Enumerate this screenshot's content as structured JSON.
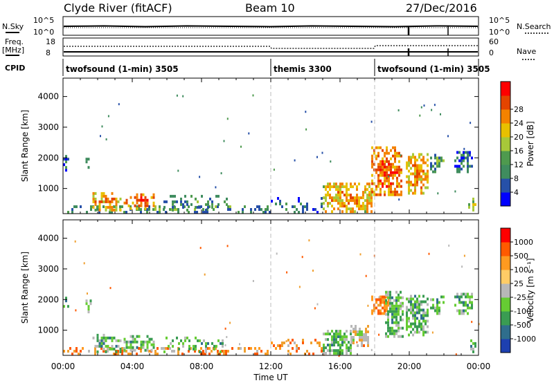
{
  "header": {
    "title": "Clyde River (fitACF)",
    "beam": "Beam 10",
    "date": "27/Dec/2016"
  },
  "top_strip": {
    "nsky_label": "N.Sky",
    "nsearch_label": "N.Search",
    "left_ticks": [
      "10^5",
      "10^0"
    ],
    "right_ticks": [
      "10^5",
      "10^0"
    ]
  },
  "freq_strip": {
    "freq_label": "Freq.",
    "freq_unit": "[MHz]",
    "nave_label": "Nave",
    "left_ticks": [
      "18",
      "8"
    ],
    "right_ticks": [
      "60",
      "0"
    ]
  },
  "cpid": {
    "label": "CPID",
    "segments": [
      {
        "start": 0,
        "end": 12,
        "name": "twofsound (1-min) 3505"
      },
      {
        "start": 12,
        "end": 18,
        "name": "themis 3300"
      },
      {
        "start": 18,
        "end": 24,
        "name": "twofsound (1-min) 3505"
      }
    ]
  },
  "colors": {
    "power": [
      "#0000ff",
      "#2650a8",
      "#3f8c5e",
      "#4e9a4e",
      "#a7c839",
      "#e8c000",
      "#f48200",
      "#e44400",
      "#ff0000"
    ],
    "velocity_bar": [
      "#ff0000",
      "#ff5a00",
      "#ff9a20",
      "#ffcc66",
      "#b8b8b8",
      "#66cc33",
      "#3a9c52",
      "#2f6e8c",
      "#1d40b0"
    ],
    "guide": "#bdbdbd"
  },
  "chart_data": [
    {
      "type": "heatmap",
      "panel": "power",
      "ylabel": "Slant Range [km]",
      "xlim": [
        0,
        24
      ],
      "ylim": [
        180,
        4600
      ],
      "y_ticks": [
        1000,
        2000,
        3000,
        4000
      ],
      "colorbar": {
        "label": "Power [dB]",
        "ticks": [
          "4",
          "8",
          "12",
          "16",
          "20",
          "24",
          "28"
        ],
        "range": [
          0,
          30
        ]
      },
      "blobs": [
        {
          "t0": 0.0,
          "t1": 11.9,
          "r0": 180,
          "r1": 420,
          "level": 3,
          "density": 0.45
        },
        {
          "t0": 0.0,
          "t1": 0.25,
          "r0": 1550,
          "r1": 2100,
          "level": 2,
          "density": 0.6
        },
        {
          "t0": 1.3,
          "t1": 1.6,
          "r0": 1550,
          "r1": 2000,
          "level": 3,
          "density": 0.6
        },
        {
          "t0": 1.7,
          "t1": 3.3,
          "r0": 250,
          "r1": 820,
          "level": 6,
          "density": 0.55
        },
        {
          "t0": 3.5,
          "t1": 5.2,
          "r0": 300,
          "r1": 800,
          "level": 7,
          "density": 0.65
        },
        {
          "t0": 5.8,
          "t1": 9.5,
          "r0": 250,
          "r1": 750,
          "level": 3,
          "density": 0.3
        },
        {
          "t0": 12.0,
          "t1": 15.0,
          "r0": 180,
          "r1": 650,
          "level": 2,
          "density": 0.3
        },
        {
          "t0": 15.0,
          "t1": 17.8,
          "r0": 200,
          "r1": 1150,
          "level": 6,
          "density": 0.7
        },
        {
          "t0": 17.8,
          "t1": 19.6,
          "r0": 750,
          "r1": 2350,
          "level": 7,
          "density": 0.8
        },
        {
          "t0": 19.8,
          "t1": 21.1,
          "r0": 800,
          "r1": 2150,
          "level": 6,
          "density": 0.75
        },
        {
          "t0": 21.2,
          "t1": 22.0,
          "r0": 1500,
          "r1": 2100,
          "level": 3,
          "density": 0.6
        },
        {
          "t0": 22.6,
          "t1": 23.6,
          "r0": 1500,
          "r1": 2200,
          "level": 2,
          "density": 0.7
        },
        {
          "t0": 23.4,
          "t1": 24.0,
          "r0": 250,
          "r1": 650,
          "level": 4,
          "density": 0.6
        }
      ]
    },
    {
      "type": "heatmap",
      "panel": "velocity",
      "ylabel": "Slant Range [km]",
      "xlabel": "Time UT",
      "xlim": [
        0,
        24
      ],
      "ylim": [
        180,
        4600
      ],
      "x_ticks": [
        "00:00",
        "04:00",
        "08:00",
        "12:00",
        "16:00",
        "20:00",
        "00:00"
      ],
      "y_ticks": [
        1000,
        2000,
        3000,
        4000
      ],
      "colorbar": {
        "label": "Velocity [m s⁻¹]",
        "ticks": [
          "1000",
          "500",
          "100",
          "25",
          "-25",
          "-100",
          "-500",
          "-1000"
        ]
      },
      "blobs": [
        {
          "t0": 0.0,
          "t1": 11.9,
          "r0": 180,
          "r1": 420,
          "level": 2,
          "density": 0.45
        },
        {
          "t0": 0.0,
          "t1": 0.25,
          "r0": 1550,
          "r1": 2100,
          "level": 6,
          "density": 0.6
        },
        {
          "t0": 1.3,
          "t1": 1.6,
          "r0": 1550,
          "r1": 2000,
          "level": 6,
          "density": 0.6
        },
        {
          "t0": 1.7,
          "t1": 3.3,
          "r0": 250,
          "r1": 820,
          "level": 6,
          "density": 0.55
        },
        {
          "t0": 3.5,
          "t1": 5.2,
          "r0": 300,
          "r1": 800,
          "level": 6,
          "density": 0.65
        },
        {
          "t0": 5.8,
          "t1": 9.5,
          "r0": 250,
          "r1": 750,
          "level": 6,
          "density": 0.3
        },
        {
          "t0": 12.0,
          "t1": 15.0,
          "r0": 180,
          "r1": 650,
          "level": 2,
          "density": 0.3
        },
        {
          "t0": 15.0,
          "t1": 16.6,
          "r0": 200,
          "r1": 1000,
          "level": 6,
          "density": 0.7
        },
        {
          "t0": 16.6,
          "t1": 17.6,
          "r0": 450,
          "r1": 1150,
          "level": 4,
          "density": 0.8
        },
        {
          "t0": 17.8,
          "t1": 18.8,
          "r0": 1500,
          "r1": 2100,
          "level": 1,
          "density": 0.8
        },
        {
          "t0": 18.6,
          "t1": 19.6,
          "r0": 750,
          "r1": 2250,
          "level": 6,
          "density": 0.8
        },
        {
          "t0": 19.8,
          "t1": 21.1,
          "r0": 800,
          "r1": 2150,
          "level": 6,
          "density": 0.75
        },
        {
          "t0": 21.2,
          "t1": 22.0,
          "r0": 1500,
          "r1": 2100,
          "level": 6,
          "density": 0.6
        },
        {
          "t0": 22.6,
          "t1": 23.6,
          "r0": 1500,
          "r1": 2200,
          "level": 6,
          "density": 0.7
        },
        {
          "t0": 23.4,
          "t1": 24.0,
          "r0": 250,
          "r1": 650,
          "level": 6,
          "density": 0.6
        }
      ]
    }
  ]
}
